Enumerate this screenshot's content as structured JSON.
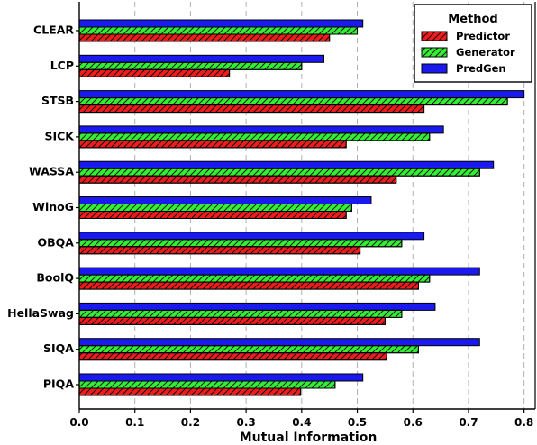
{
  "chart_data": {
    "type": "bar",
    "orientation": "horizontal",
    "categories": [
      "CLEAR",
      "LCP",
      "STSB",
      "SICK",
      "WASSA",
      "WinoG",
      "OBQA",
      "BoolQ",
      "HellaSwag",
      "SIQA",
      "PIQA"
    ],
    "series": [
      {
        "name": "Predictor",
        "color": "#ee1c1c",
        "values": [
          0.45,
          0.27,
          0.62,
          0.48,
          0.57,
          0.48,
          0.505,
          0.61,
          0.55,
          0.553,
          0.398
        ]
      },
      {
        "name": "Generator",
        "color": "#33ee33",
        "values": [
          0.5,
          0.4,
          0.77,
          0.63,
          0.72,
          0.49,
          0.58,
          0.63,
          0.58,
          0.61,
          0.46
        ]
      },
      {
        "name": "PredGen",
        "color": "#1a1aee",
        "values": [
          0.51,
          0.44,
          0.8,
          0.655,
          0.745,
          0.525,
          0.62,
          0.72,
          0.64,
          0.72,
          0.51
        ]
      }
    ],
    "xlabel": "Mutual Information",
    "ylabel": "",
    "xlim": [
      0,
      0.82
    ],
    "xticks": [
      "0.0",
      "0.1",
      "0.2",
      "0.3",
      "0.4",
      "0.5",
      "0.6",
      "0.7",
      "0.8"
    ],
    "grid": "vertical dashed",
    "legend": {
      "title": "Method",
      "placement": "top-right"
    }
  }
}
